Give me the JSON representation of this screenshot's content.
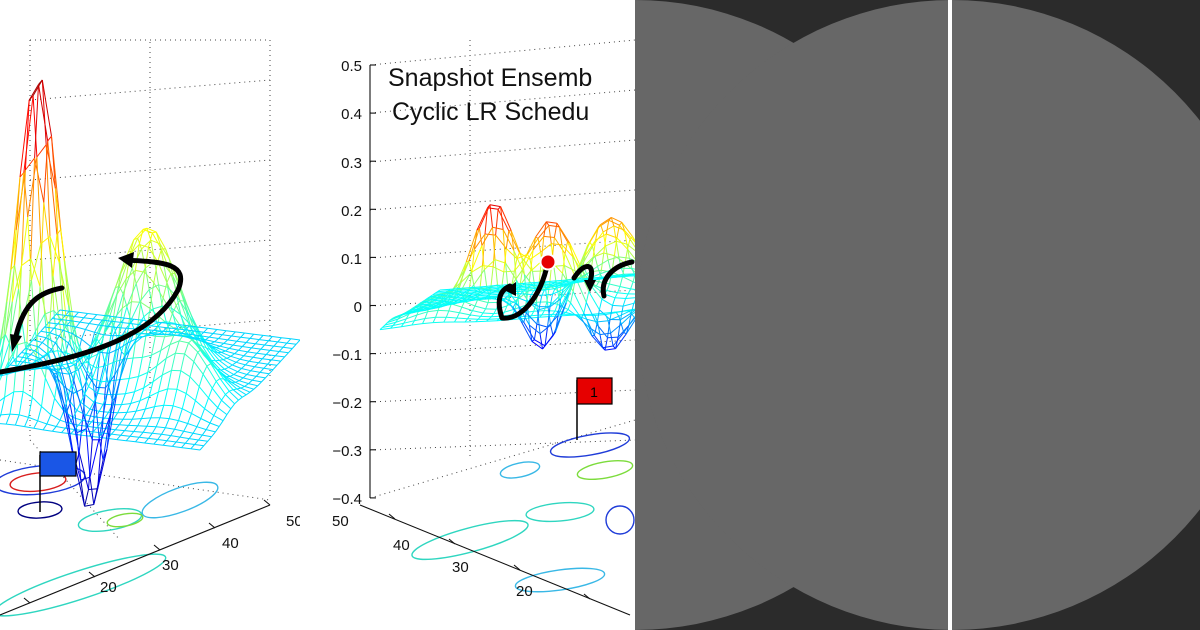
{
  "chart_data": [
    {
      "type": "surface",
      "title": "",
      "x_ticks": [
        "20",
        "30",
        "40",
        "50"
      ],
      "grid": true,
      "markers": [
        {
          "type": "flag",
          "color": "#1a56e6",
          "label": ""
        }
      ],
      "trajectory": "single large arc circling one minimum"
    },
    {
      "type": "surface",
      "title": "Snapshot Ensemb",
      "subtitle": "Cyclic LR Schedu",
      "z_ticks": [
        "0.5",
        "0.4",
        "0.3",
        "0.2",
        "0.1",
        "0",
        "−0.1",
        "−0.2",
        "−0.3",
        "−0.4"
      ],
      "zlim": [
        -0.4,
        0.5
      ],
      "y_ticks": [
        "50",
        "40",
        "30",
        "20"
      ],
      "grid": true,
      "markers": [
        {
          "type": "flag",
          "color": "#e60000",
          "label": "1"
        },
        {
          "type": "point",
          "color": "#e60000",
          "label": ""
        }
      ],
      "trajectory": "multiple short arcs between local minima"
    }
  ],
  "colors": {
    "overlay_bg": "#2b2b2b",
    "circle": "#676767"
  }
}
